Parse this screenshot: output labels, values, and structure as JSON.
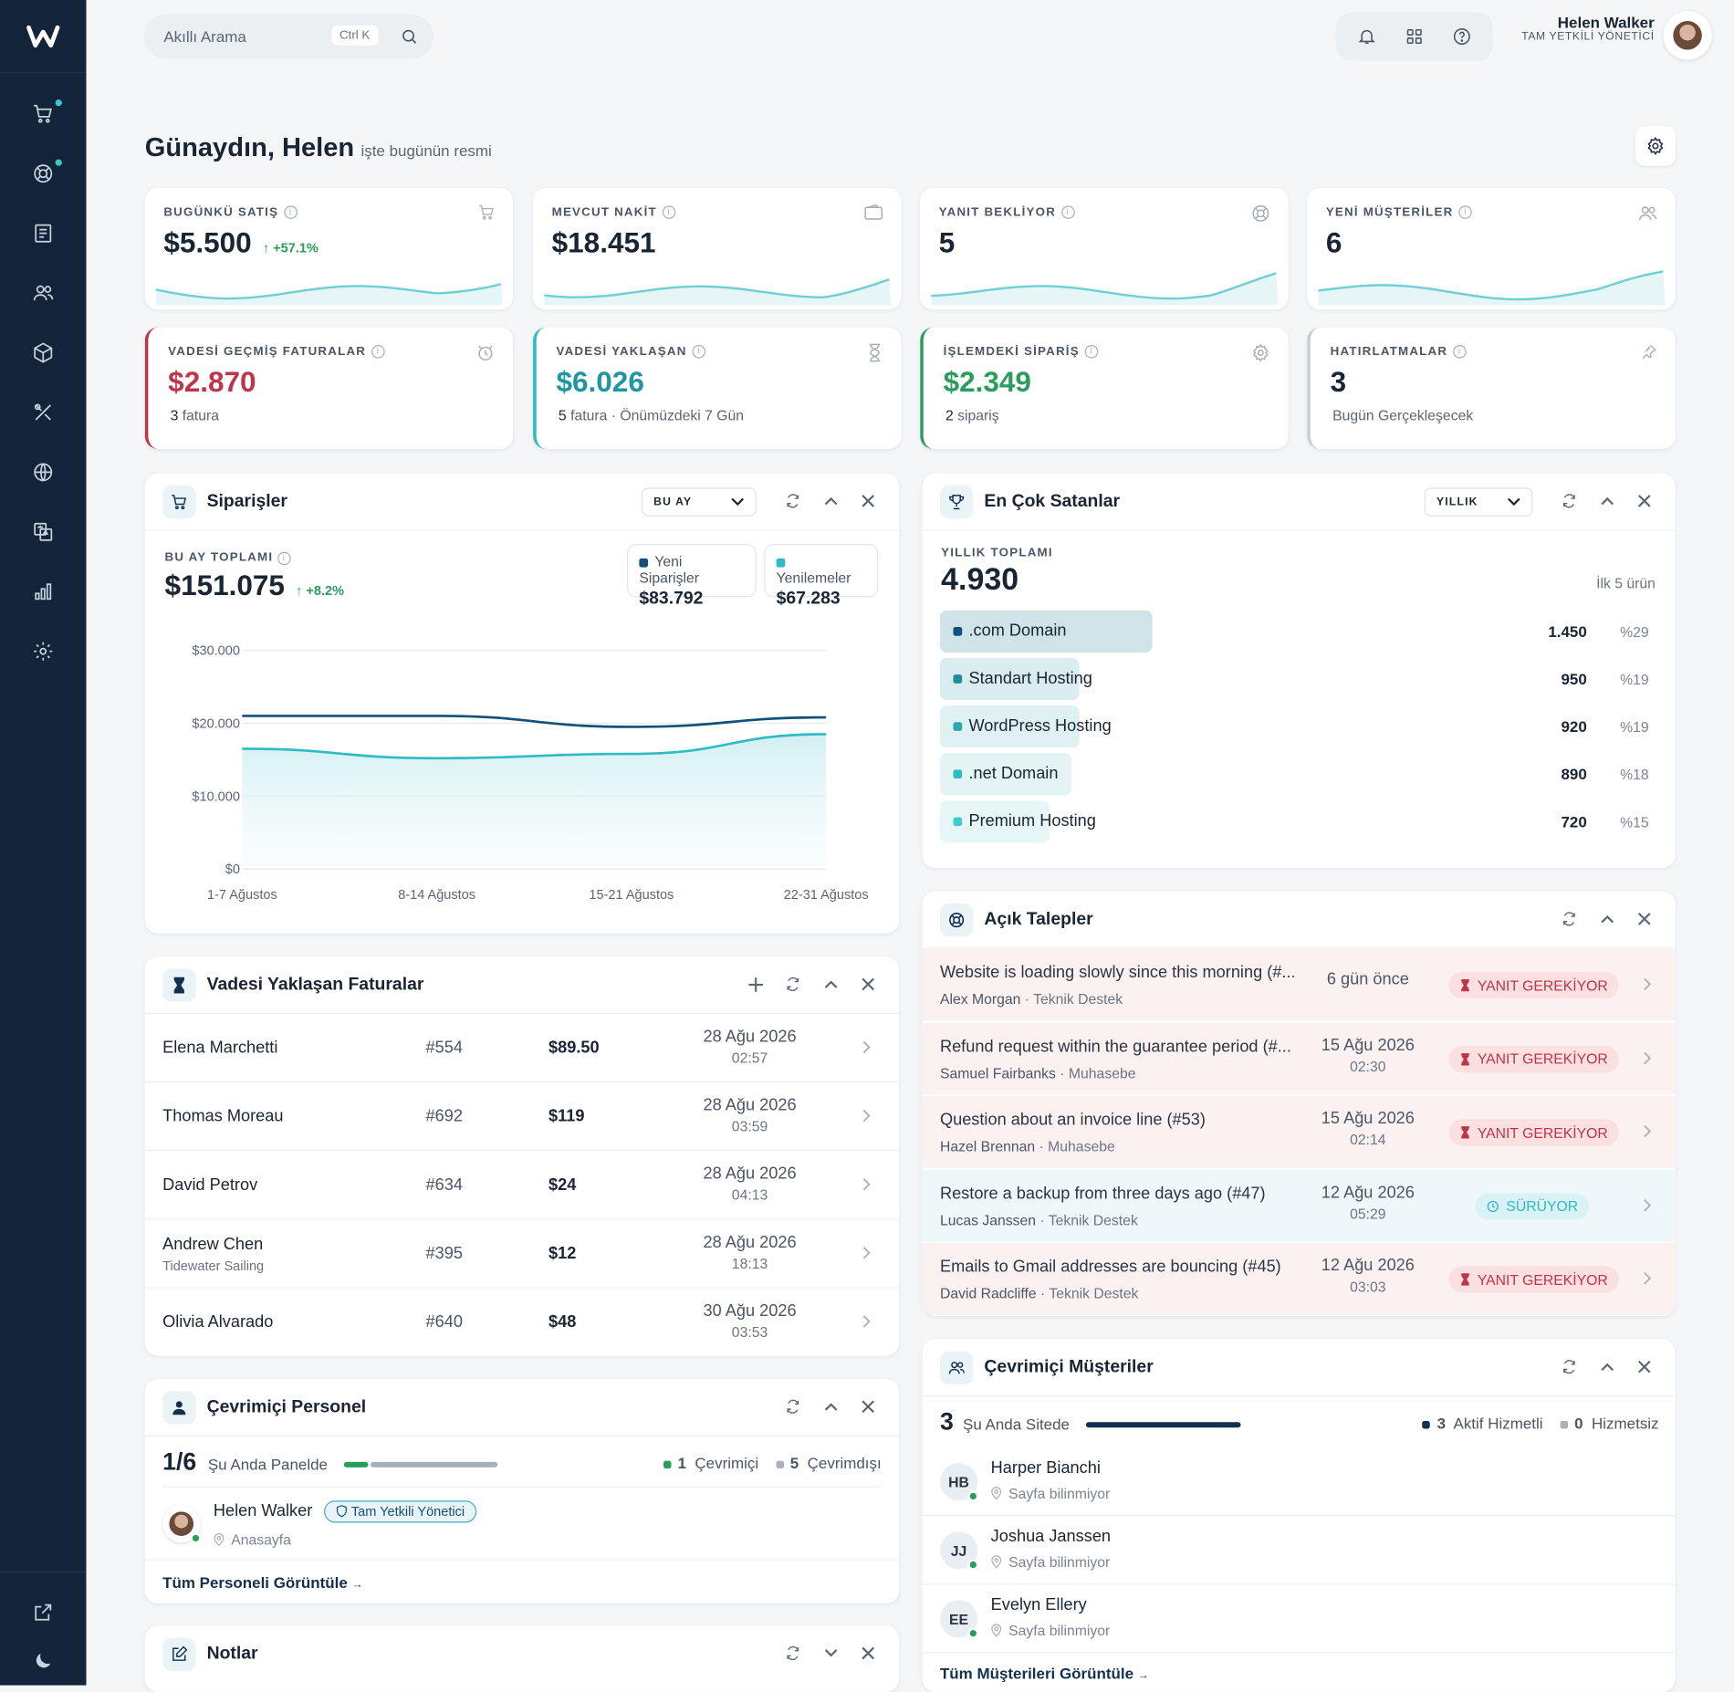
{
  "sidebar": {
    "items": [
      "cart-icon",
      "support-icon",
      "invoice-icon",
      "users-icon",
      "box-icon",
      "tools-icon",
      "globe-icon",
      "translate-icon",
      "chart-icon",
      "settings-icon"
    ],
    "bottom": [
      "external-link-icon",
      "moon-icon"
    ]
  },
  "topbar": {
    "search_placeholder": "Akıllı Arama",
    "shortcut": "Ctrl K",
    "user_name": "Helen Walker",
    "user_role": "TAM YETKİLİ YÖNETİCİ"
  },
  "greeting": {
    "title": "Günaydın, Helen",
    "subtitle": "işte bugünün resmi"
  },
  "stats": [
    {
      "label": "BUGÜNKÜ SATIŞ",
      "value": "$5.500",
      "change": "↑ +57.1%"
    },
    {
      "label": "MEVCUT NAKİT",
      "value": "$18.451"
    },
    {
      "label": "YANIT BEKLİYOR",
      "value": "5"
    },
    {
      "label": "YENİ MÜŞTERİLER",
      "value": "6"
    }
  ],
  "alerts": [
    {
      "label": "VADESİ GEÇMİŞ FATURALAR",
      "value": "$2.870",
      "sub_num": "3",
      "sub": "fatura",
      "color": "#c0344a"
    },
    {
      "label": "VADESİ YAKLAŞAN",
      "value": "$6.026",
      "sub_num": "5",
      "sub": "fatura · Önümüzdeki 7 Gün",
      "color": "#1f97a3"
    },
    {
      "label": "İŞLEMDEKİ SİPARİŞ",
      "value": "$2.349",
      "sub_num": "2",
      "sub": "sipariş",
      "color": "#2a9d5c"
    },
    {
      "label": "HATIRLATMALAR",
      "value": "3",
      "sub": "Bugün Gerçekleşecek",
      "color": "#1a2533"
    }
  ],
  "orders": {
    "title": "Siparişler",
    "period": "BU AY",
    "total_label": "BU AY TOPLAMI",
    "total": "$151.075",
    "change": "↑ +8.2%",
    "legend": [
      {
        "name": "Yeni Siparişler",
        "value": "$83.792",
        "color": "#12507a"
      },
      {
        "name": "Yenilemeler",
        "value": "$67.283",
        "color": "#2fbac4"
      }
    ]
  },
  "chart_data": {
    "type": "line",
    "x": [
      "1-7 Ağustos",
      "8-14 Ağustos",
      "15-21 Ağustos",
      "22-31 Ağustos"
    ],
    "series": [
      {
        "name": "Yeni Siparişler",
        "values": [
          21000,
          21000,
          19500,
          20800
        ]
      },
      {
        "name": "Yenilemeler",
        "values": [
          16500,
          15200,
          15800,
          18500
        ]
      }
    ],
    "y_ticks": [
      "$30.000",
      "$20.000",
      "$10.000",
      "$0"
    ],
    "ylim": [
      0,
      30000
    ],
    "grid": true
  },
  "top_sellers": {
    "title": "En Çok Satanlar",
    "period": "YILLIK",
    "total_label": "YILLIK TOPLAMI",
    "total": "4.930",
    "hint": "İlk 5 ürün",
    "items": [
      {
        "name": ".com Domain",
        "count": "1.450",
        "pct": "%29",
        "share": 29
      },
      {
        "name": "Standart Hosting",
        "count": "950",
        "pct": "%19",
        "share": 19
      },
      {
        "name": "WordPress Hosting",
        "count": "920",
        "pct": "%19",
        "share": 19
      },
      {
        "name": ".net Domain",
        "count": "890",
        "pct": "%18",
        "share": 18
      },
      {
        "name": "Premium Hosting",
        "count": "720",
        "pct": "%15",
        "share": 15
      }
    ]
  },
  "invoices": {
    "title": "Vadesi Yaklaşan Faturalar",
    "rows": [
      {
        "name": "Elena Marchetti",
        "company": "",
        "id": "#554",
        "amount": "$89.50",
        "date": "28 Ağu 2026",
        "time": "02:57"
      },
      {
        "name": "Thomas Moreau",
        "company": "",
        "id": "#692",
        "amount": "$119",
        "date": "28 Ağu 2026",
        "time": "03:59"
      },
      {
        "name": "David Petrov",
        "company": "",
        "id": "#634",
        "amount": "$24",
        "date": "28 Ağu 2026",
        "time": "04:13"
      },
      {
        "name": "Andrew Chen",
        "company": "Tidewater Sailing",
        "id": "#395",
        "amount": "$12",
        "date": "28 Ağu 2026",
        "time": "18:13"
      },
      {
        "name": "Olivia Alvarado",
        "company": "",
        "id": "#640",
        "amount": "$48",
        "date": "30 Ağu 2026",
        "time": "03:53"
      }
    ]
  },
  "tickets": {
    "title": "Açık Talepler",
    "rows": [
      {
        "title": "Website is loading slowly since this morning (#...",
        "user": "Alex Morgan",
        "dept": "Teknik Destek",
        "time": "6 gün önce",
        "time2": "",
        "status": "YANIT GEREKİYOR"
      },
      {
        "title": "Refund request within the guarantee period (#...",
        "user": "Samuel Fairbanks",
        "dept": "Muhasebe",
        "time": "15 Ağu 2026",
        "time2": "02:30",
        "status": "YANIT GEREKİYOR"
      },
      {
        "title": "Question about an invoice line (#53)",
        "user": "Hazel Brennan",
        "dept": "Muhasebe",
        "time": "15 Ağu 2026",
        "time2": "02:14",
        "status": "YANIT GEREKİYOR"
      },
      {
        "title": "Restore a backup from three days ago (#47)",
        "user": "Lucas Janssen",
        "dept": "Teknik Destek",
        "time": "12 Ağu 2026",
        "time2": "05:29",
        "status": "SÜRÜYOR"
      },
      {
        "title": "Emails to Gmail addresses are bouncing (#45)",
        "user": "David Radcliffe",
        "dept": "Teknik Destek",
        "time": "12 Ağu 2026",
        "time2": "03:03",
        "status": "YANIT GEREKİYOR"
      }
    ]
  },
  "staff": {
    "title": "Çevrimiçi Personel",
    "count": "1/6",
    "count_label": "Şu Anda Panelde",
    "online_num": "1",
    "online": "Çevrimiçi",
    "offline_num": "5",
    "offline": "Çevrimdışı",
    "member_name": "Helen Walker",
    "member_role": "Tam Yetkili Yönetici",
    "member_location": "Anasayfa",
    "link": "Tüm Personeli Görüntüle"
  },
  "notes": {
    "title": "Notlar"
  },
  "customers": {
    "title": "Çevrimiçi Müşteriler",
    "count": "3",
    "count_label": "Şu Anda Sitede",
    "active_num": "3",
    "active": "Aktif Hizmetli",
    "inactive_num": "0",
    "inactive": "Hizmetsiz",
    "rows": [
      {
        "initials": "HB",
        "name": "Harper Bianchi",
        "location": "Sayfa bilinmiyor"
      },
      {
        "initials": "JJ",
        "name": "Joshua Janssen",
        "location": "Sayfa bilinmiyor"
      },
      {
        "initials": "EE",
        "name": "Evelyn Ellery",
        "location": "Sayfa bilinmiyor"
      }
    ],
    "link": "Tüm Müşterileri Görüntüle"
  }
}
